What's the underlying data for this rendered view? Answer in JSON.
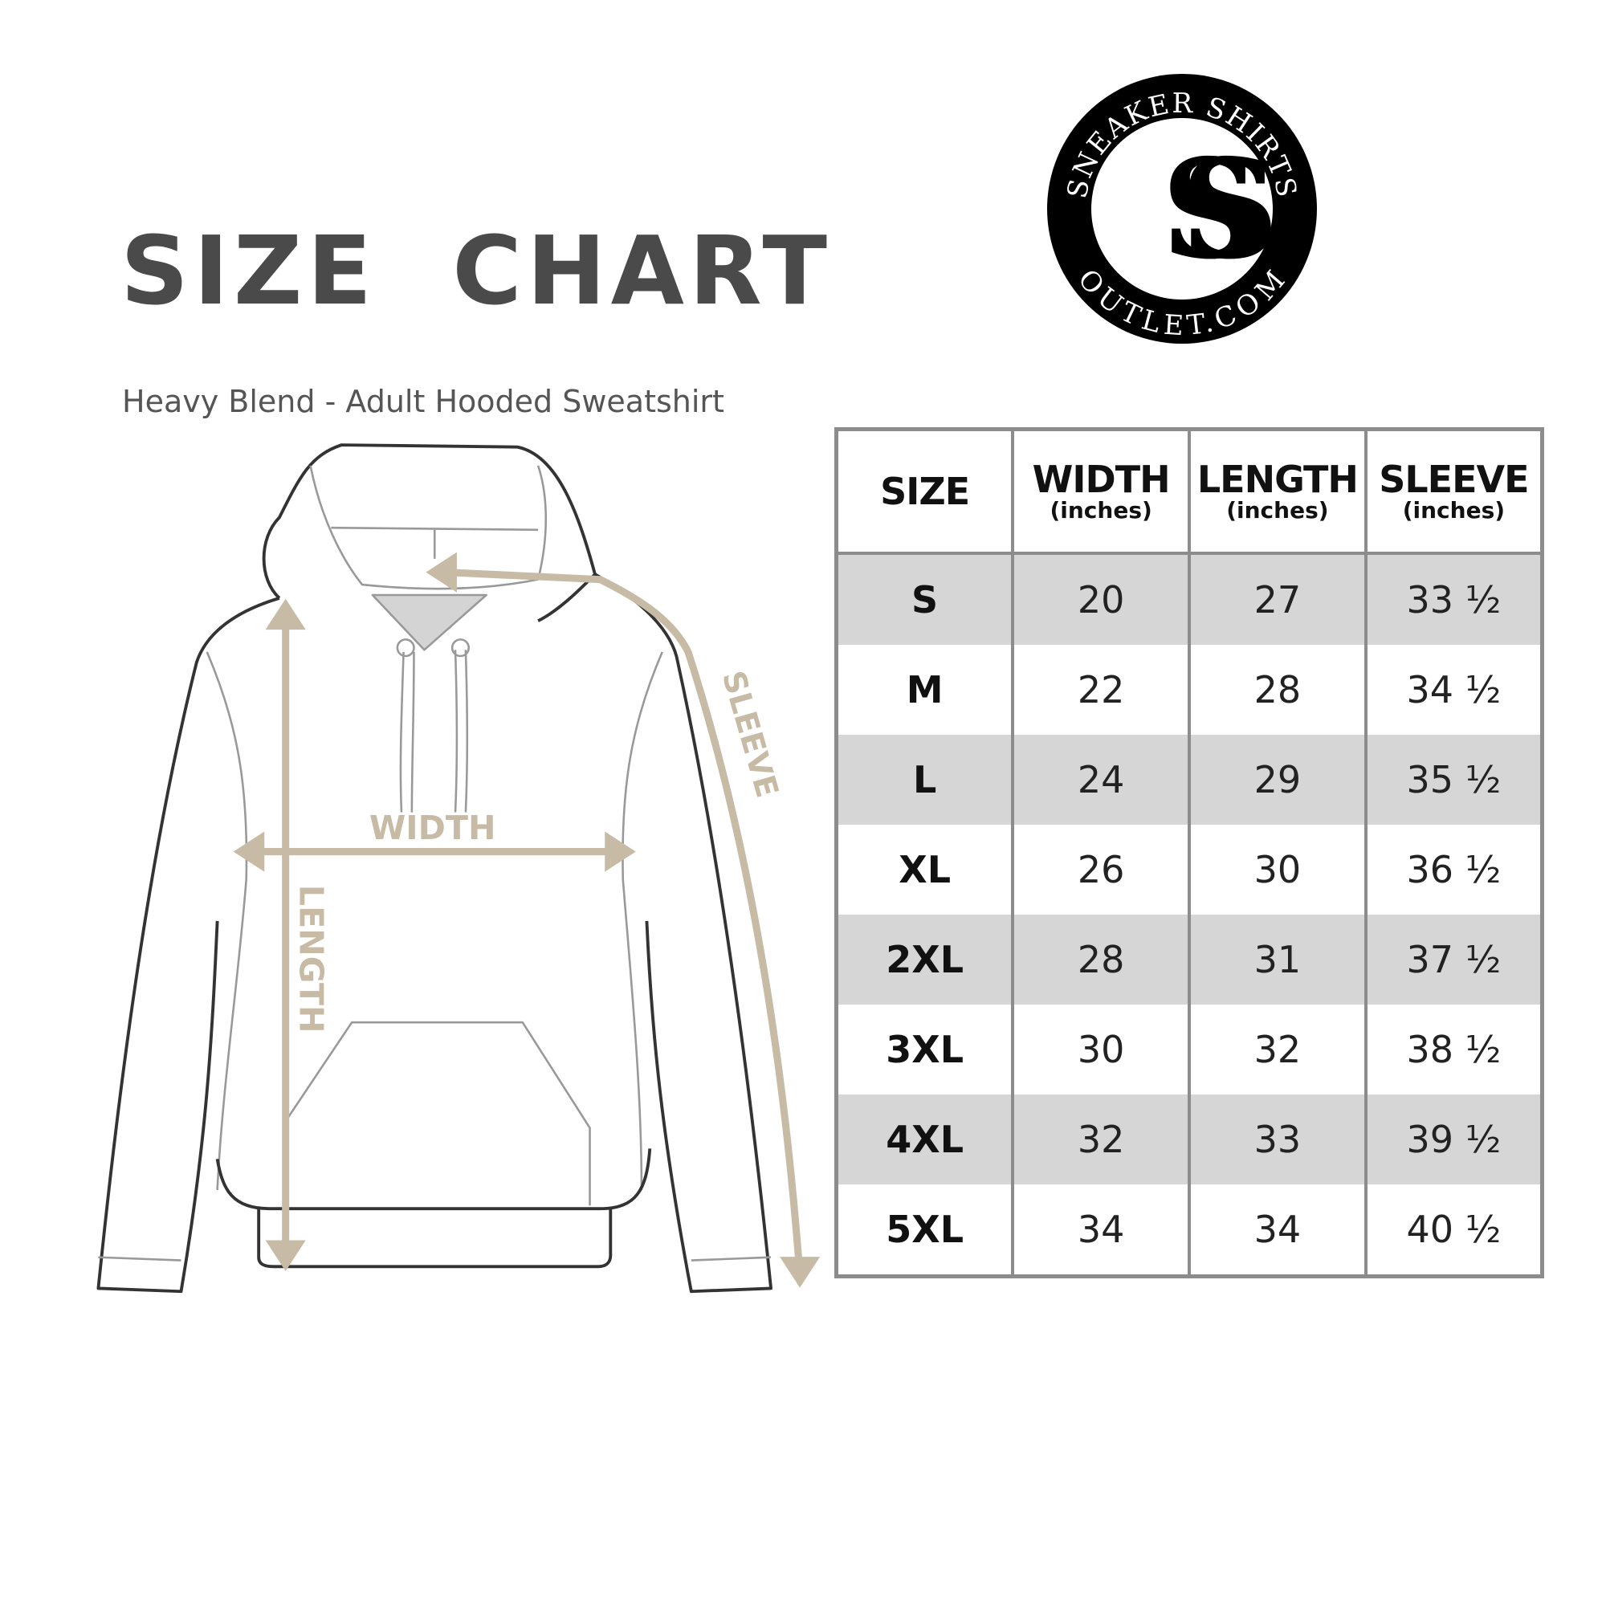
{
  "header": {
    "title": "SIZE  CHART",
    "subtitle": "Heavy Blend - Adult Hooded Sweatshirt"
  },
  "logo": {
    "text_top": "SNEAKER SHIRTS",
    "text_bottom": "OUTLET.COM",
    "monogram": "SS"
  },
  "diagram": {
    "labels": {
      "width": "WIDTH",
      "length": "LENGTH",
      "sleeve": "SLEEVE"
    },
    "accent_color": "#c8bba6"
  },
  "table": {
    "headers": [
      {
        "label": "SIZE",
        "unit": ""
      },
      {
        "label": "WIDTH",
        "unit": "(inches)"
      },
      {
        "label": "LENGTH",
        "unit": "(inches)"
      },
      {
        "label": "SLEEVE",
        "unit": "(inches)"
      }
    ],
    "rows": [
      [
        "S",
        "20",
        "27",
        "33 ½"
      ],
      [
        "M",
        "22",
        "28",
        "34 ½"
      ],
      [
        "L",
        "24",
        "29",
        "35 ½"
      ],
      [
        "XL",
        "26",
        "30",
        "36 ½"
      ],
      [
        "2XL",
        "28",
        "31",
        "37 ½"
      ],
      [
        "3XL",
        "30",
        "32",
        "38 ½"
      ],
      [
        "4XL",
        "32",
        "33",
        "39 ½"
      ],
      [
        "5XL",
        "34",
        "34",
        "40 ½"
      ]
    ]
  }
}
